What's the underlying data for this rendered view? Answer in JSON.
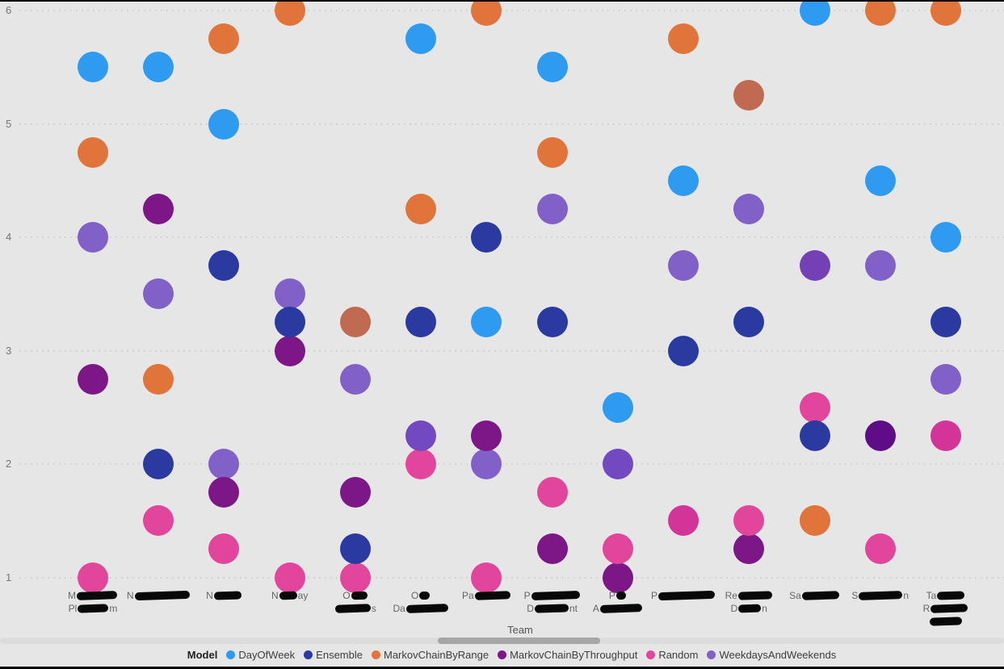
{
  "page": {
    "background": "#e6e6e6",
    "top_border_color": "#000000",
    "bottom_border_color": "#000000"
  },
  "palette": {
    "dayofweek": "#2E9BF0",
    "ensemble": "#2B3AA0",
    "range": "#E1743B",
    "throughput": "#7D1687",
    "random": "#E2469C",
    "weekdays": "#8160C8",
    "range_blend": "#C06A51",
    "weekdays_blend": "#7249C0",
    "weekdays_dark": "#7340B5",
    "throughput_dark": "#5F0D86",
    "random_dark": "#D23597"
  },
  "legend": {
    "title": "Model",
    "items": [
      {
        "label": "DayOfWeek",
        "color": "#2E9BF0"
      },
      {
        "label": "Ensemble",
        "color": "#2B3AA0"
      },
      {
        "label": "MarkovChainByRange",
        "color": "#E1743B"
      },
      {
        "label": "MarkovChainByThroughput",
        "color": "#7D1687"
      },
      {
        "label": "Random",
        "color": "#E2469C"
      },
      {
        "label": "WeekdaysAndWeekends",
        "color": "#8160C8"
      }
    ]
  },
  "scrollbar": {
    "track_color": "#dcdcdc",
    "thumb_color": "#a6a6a6"
  },
  "chart_data": {
    "type": "scatter",
    "title": "",
    "xlabel": "Team",
    "ylabel": "",
    "ylim": [
      1,
      6
    ],
    "yticks": [
      1,
      2,
      3,
      4,
      5,
      6
    ],
    "grid": "dotted-horizontal",
    "legend_position": "bottom",
    "categories_visible": [
      "M… Pl…m",
      "N…",
      "N…",
      "N…ay",
      "O… …s",
      "O… Da…",
      "Pa…",
      "P… D…nt",
      "P… A…",
      "P…",
      "Re… D…n",
      "Sa…",
      "S…n",
      "Ta… R… …"
    ],
    "teams": [
      {
        "label_lines": [
          {
            "pre": "M",
            "bar": 50,
            "post": ""
          },
          {
            "pre": "Pl",
            "bar": 38,
            "post": "m"
          }
        ]
      },
      {
        "label_lines": [
          {
            "pre": "N",
            "bar": 68,
            "post": ""
          }
        ]
      },
      {
        "label_lines": [
          {
            "pre": "N",
            "bar": 34,
            "post": ""
          }
        ]
      },
      {
        "label_lines": [
          {
            "pre": "N",
            "bar": 22,
            "post": "ay"
          }
        ]
      },
      {
        "label_lines": [
          {
            "pre": "O",
            "bar": 20,
            "post": ""
          },
          {
            "pre": "",
            "bar": 44,
            "post": "s"
          }
        ]
      },
      {
        "label_lines": [
          {
            "pre": "O",
            "bar": 13,
            "post": ""
          },
          {
            "pre": "Da",
            "bar": 52,
            "post": ""
          }
        ]
      },
      {
        "label_lines": [
          {
            "pre": "Pa",
            "bar": 44,
            "post": ""
          }
        ]
      },
      {
        "label_lines": [
          {
            "pre": "P",
            "bar": 60,
            "post": ""
          },
          {
            "pre": "D",
            "bar": 42,
            "post": "nt"
          }
        ]
      },
      {
        "label_lines": [
          {
            "pre": "P",
            "bar": 12,
            "post": ""
          },
          {
            "pre": "A",
            "bar": 52,
            "post": ""
          }
        ]
      },
      {
        "label_lines": [
          {
            "pre": "P",
            "bar": 70,
            "post": ""
          }
        ]
      },
      {
        "label_lines": [
          {
            "pre": "Re",
            "bar": 42,
            "post": ""
          },
          {
            "pre": "D",
            "bar": 28,
            "post": "n"
          }
        ]
      },
      {
        "label_lines": [
          {
            "pre": "Sa",
            "bar": 46,
            "post": ""
          }
        ]
      },
      {
        "label_lines": [
          {
            "pre": "S",
            "bar": 54,
            "post": "n"
          }
        ]
      },
      {
        "label_lines": [
          {
            "pre": "Ta",
            "bar": 34,
            "post": ""
          },
          {
            "pre": "R",
            "bar": 46,
            "post": ""
          },
          {
            "pre": "",
            "bar": 40,
            "post": ""
          }
        ]
      }
    ],
    "points": [
      {
        "team": 0,
        "model": "DayOfWeek",
        "value": 5.5,
        "shade": "dayofweek"
      },
      {
        "team": 0,
        "model": "MarkovChainByRange",
        "value": 4.75,
        "shade": "range"
      },
      {
        "team": 0,
        "model": "WeekdaysAndWeekends",
        "value": 4,
        "shade": "weekdays"
      },
      {
        "team": 0,
        "model": "MarkovChainByThroughput",
        "value": 2.75,
        "shade": "throughput"
      },
      {
        "team": 0,
        "model": "Random",
        "value": 1,
        "shade": "random"
      },
      {
        "team": 1,
        "model": "DayOfWeek",
        "value": 5.5,
        "shade": "dayofweek"
      },
      {
        "team": 1,
        "model": "MarkovChainByThroughput",
        "value": 4.25,
        "shade": "throughput"
      },
      {
        "team": 1,
        "model": "WeekdaysAndWeekends",
        "value": 3.5,
        "shade": "weekdays"
      },
      {
        "team": 1,
        "model": "MarkovChainByRange",
        "value": 2.75,
        "shade": "range"
      },
      {
        "team": 1,
        "model": "Ensemble",
        "value": 2,
        "shade": "ensemble"
      },
      {
        "team": 1,
        "model": "Random",
        "value": 1.5,
        "shade": "random"
      },
      {
        "team": 2,
        "model": "MarkovChainByRange",
        "value": 5.75,
        "shade": "range"
      },
      {
        "team": 2,
        "model": "DayOfWeek",
        "value": 5,
        "shade": "dayofweek"
      },
      {
        "team": 2,
        "model": "Ensemble",
        "value": 3.75,
        "shade": "ensemble"
      },
      {
        "team": 2,
        "model": "WeekdaysAndWeekends",
        "value": 2,
        "shade": "weekdays"
      },
      {
        "team": 2,
        "model": "MarkovChainByThroughput",
        "value": 1.75,
        "shade": "throughput"
      },
      {
        "team": 2,
        "model": "Random",
        "value": 1.25,
        "shade": "random"
      },
      {
        "team": 3,
        "model": "MarkovChainByRange",
        "value": 6,
        "shade": "range"
      },
      {
        "team": 3,
        "model": "WeekdaysAndWeekends",
        "value": 3.5,
        "shade": "weekdays"
      },
      {
        "team": 3,
        "model": "MarkovChainByThroughput",
        "value": 3,
        "shade": "throughput"
      },
      {
        "team": 3,
        "model": "Ensemble",
        "value": 3.25,
        "shade": "ensemble"
      },
      {
        "team": 3,
        "model": "Random",
        "value": 1,
        "shade": "random"
      },
      {
        "team": 4,
        "model": "MarkovChainByRange",
        "value": 3.25,
        "shade": "range_blend"
      },
      {
        "team": 4,
        "model": "WeekdaysAndWeekends",
        "value": 2.75,
        "shade": "weekdays"
      },
      {
        "team": 4,
        "model": "MarkovChainByThroughput",
        "value": 1.75,
        "shade": "throughput"
      },
      {
        "team": 4,
        "model": "Random",
        "value": 1,
        "shade": "random"
      },
      {
        "team": 4,
        "model": "Ensemble",
        "value": 1.25,
        "shade": "ensemble"
      },
      {
        "team": 5,
        "model": "DayOfWeek",
        "value": 5.75,
        "shade": "dayofweek"
      },
      {
        "team": 5,
        "model": "MarkovChainByRange",
        "value": 4.25,
        "shade": "range"
      },
      {
        "team": 5,
        "model": "Ensemble",
        "value": 3.25,
        "shade": "ensemble"
      },
      {
        "team": 5,
        "model": "Random",
        "value": 2,
        "shade": "random"
      },
      {
        "team": 5,
        "model": "WeekdaysAndWeekends",
        "value": 2.25,
        "shade": "weekdays_blend"
      },
      {
        "team": 6,
        "model": "MarkovChainByRange",
        "value": 6,
        "shade": "range"
      },
      {
        "team": 6,
        "model": "Ensemble",
        "value": 4,
        "shade": "ensemble"
      },
      {
        "team": 6,
        "model": "DayOfWeek",
        "value": 3.25,
        "shade": "dayofweek"
      },
      {
        "team": 6,
        "model": "WeekdaysAndWeekends",
        "value": 2,
        "shade": "weekdays"
      },
      {
        "team": 6,
        "model": "MarkovChainByThroughput",
        "value": 2.25,
        "shade": "throughput"
      },
      {
        "team": 6,
        "model": "Random",
        "value": 1,
        "shade": "random"
      },
      {
        "team": 7,
        "model": "DayOfWeek",
        "value": 5.5,
        "shade": "dayofweek"
      },
      {
        "team": 7,
        "model": "MarkovChainByRange",
        "value": 4.75,
        "shade": "range"
      },
      {
        "team": 7,
        "model": "WeekdaysAndWeekends",
        "value": 4.25,
        "shade": "weekdays"
      },
      {
        "team": 7,
        "model": "Ensemble",
        "value": 3.25,
        "shade": "ensemble"
      },
      {
        "team": 7,
        "model": "Random",
        "value": 1.75,
        "shade": "random"
      },
      {
        "team": 7,
        "model": "MarkovChainByThroughput",
        "value": 1.25,
        "shade": "throughput"
      },
      {
        "team": 8,
        "model": "DayOfWeek",
        "value": 2.5,
        "shade": "dayofweek"
      },
      {
        "team": 8,
        "model": "WeekdaysAndWeekends",
        "value": 2,
        "shade": "weekdays_blend"
      },
      {
        "team": 8,
        "model": "MarkovChainByThroughput",
        "value": 1,
        "shade": "throughput"
      },
      {
        "team": 8,
        "model": "Random",
        "value": 1.25,
        "shade": "random"
      },
      {
        "team": 9,
        "model": "MarkovChainByRange",
        "value": 5.75,
        "shade": "range"
      },
      {
        "team": 9,
        "model": "DayOfWeek",
        "value": 4.5,
        "shade": "dayofweek"
      },
      {
        "team": 9,
        "model": "WeekdaysAndWeekends",
        "value": 3.75,
        "shade": "weekdays"
      },
      {
        "team": 9,
        "model": "Ensemble",
        "value": 3,
        "shade": "ensemble"
      },
      {
        "team": 9,
        "model": "Random",
        "value": 1.5,
        "shade": "random_dark"
      },
      {
        "team": 10,
        "model": "MarkovChainByRange",
        "value": 5.25,
        "shade": "range_blend"
      },
      {
        "team": 10,
        "model": "WeekdaysAndWeekends",
        "value": 4.25,
        "shade": "weekdays"
      },
      {
        "team": 10,
        "model": "Ensemble",
        "value": 3.25,
        "shade": "ensemble"
      },
      {
        "team": 10,
        "model": "MarkovChainByThroughput",
        "value": 1.25,
        "shade": "throughput"
      },
      {
        "team": 10,
        "model": "Random",
        "value": 1.5,
        "shade": "random"
      },
      {
        "team": 11,
        "model": "DayOfWeek",
        "value": 6,
        "shade": "dayofweek"
      },
      {
        "team": 11,
        "model": "WeekdaysAndWeekends",
        "value": 3.75,
        "shade": "weekdays_dark"
      },
      {
        "team": 11,
        "model": "Random",
        "value": 2.5,
        "shade": "random"
      },
      {
        "team": 11,
        "model": "Ensemble",
        "value": 2.25,
        "shade": "ensemble"
      },
      {
        "team": 11,
        "model": "MarkovChainByRange",
        "value": 1.5,
        "shade": "range"
      },
      {
        "team": 12,
        "model": "MarkovChainByRange",
        "value": 6,
        "shade": "range"
      },
      {
        "team": 12,
        "model": "DayOfWeek",
        "value": 4.5,
        "shade": "dayofweek"
      },
      {
        "team": 12,
        "model": "WeekdaysAndWeekends",
        "value": 3.75,
        "shade": "weekdays"
      },
      {
        "team": 12,
        "model": "MarkovChainByThroughput",
        "value": 2.25,
        "shade": "throughput_dark"
      },
      {
        "team": 12,
        "model": "Random",
        "value": 1.25,
        "shade": "random"
      },
      {
        "team": 13,
        "model": "MarkovChainByRange",
        "value": 6,
        "shade": "range"
      },
      {
        "team": 13,
        "model": "DayOfWeek",
        "value": 4,
        "shade": "dayofweek"
      },
      {
        "team": 13,
        "model": "Ensemble",
        "value": 3.25,
        "shade": "ensemble"
      },
      {
        "team": 13,
        "model": "WeekdaysAndWeekends",
        "value": 2.75,
        "shade": "weekdays"
      },
      {
        "team": 13,
        "model": "Random",
        "value": 2.25,
        "shade": "random_dark"
      }
    ]
  }
}
